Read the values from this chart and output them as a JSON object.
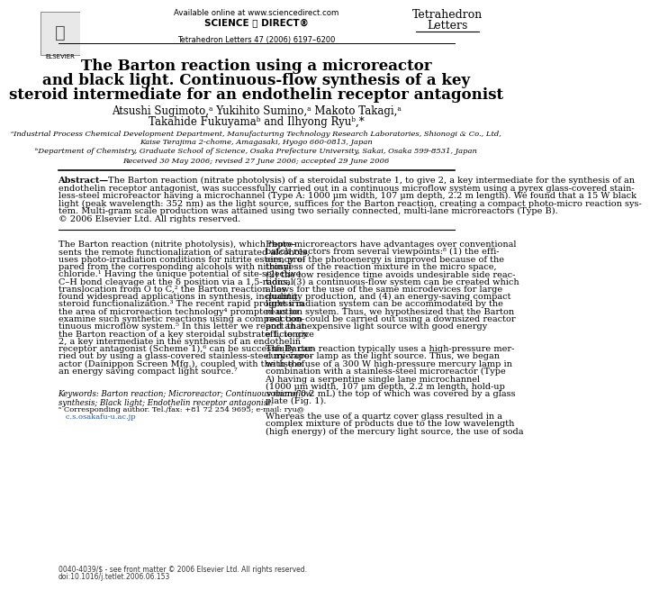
{
  "page_bg": "#ffffff",
  "header_online": "Available online at www.sciencedirect.com",
  "header_sd": "SCIENCE ⓐ DIRECT®",
  "header_journal_issue": "Tetrahedron Letters 47 (2006) 6197–6200",
  "header_journal_name": "Tetrahedron\nLetters",
  "title_line1": "The Barton reaction using a microreactor",
  "title_line2": "and black light. Continuous-flow synthesis of a key",
  "title_line3": "steroid intermediate for an endothelin receptor antagonist",
  "author_line1": "Atsushi Sugimoto,ᵃ Yukihito Sumino,ᵃ Makoto Takagi,ᵃ",
  "author_line2": "Takahide Fukuyamaᵇ and Ilhyong Ryuᵇ,*",
  "affil_a": "ᵃIndustrial Process Chemical Development Department, Manufacturing Technology Research Laboratories, Shionogi & Co., Ltd,",
  "affil_a2": "Kaise Terajima 2-chome, Amagasaki, Hyogo 660-0813, Japan",
  "affil_b": "ᵇDepartment of Chemistry, Graduate School of Science, Osaka Prefecture University, Sakai, Osaka 599-8531, Japan",
  "received": "Received 30 May 2006; revised 27 June 2006; accepted 29 June 2006",
  "abstract_bold": "Abstract—",
  "abstract_body": "The Barton reaction (nitrate photolysis) of a steroidal substrate 1, to give 2, a key intermediate for the synthesis of an endothelin receptor antagonist, was successfully carried out in a continuous microflow system using a pyrex glass-covered stainless-steel microreactor having a microchannel (Type A: 1000 μm width, 107 μm depth, 2.2 m length). We found that a 15 W black light (peak wavelength: 352 nm) as the light source, suffices for the Barton reaction, creating a compact photo-micro reaction system. Multi-gram scale production was attained using two serially connected, multi-lane microreactors (Type B).\n© 2006 Elsevier Ltd. All rights reserved.",
  "col1": [
    "The Barton reaction (nitrite photolysis), which repre-",
    "sents the remote functionalization of saturated alcohols,",
    "uses photo-irradiation conditions for nitrite esters, pre-",
    "pared from the corresponding alcohols with nitrosyl",
    "chloride.¹ Having the unique potential of site-selective",
    "C–H bond cleavage at the δ position via a 1,5-radical",
    "translocation from O to C,² the Barton reaction has",
    "found widespread applications in synthesis, including",
    "steroid functionalization.³ The recent rapid progress in",
    "the area of microreaction technology⁴ prompted us to",
    "examine such synthetic reactions using a compact con-",
    "tinuous microflow system.⁵ In this letter we report that",
    "the Barton reaction of a key steroidal substrate 1, to give",
    "2, a key intermediate in the synthesis of an endothelin",
    "receptor antagonist (Scheme 1),⁶ can be successfully car-",
    "ried out by using a glass-covered stainless-steel microre-",
    "actor (Dainippon Screen Mfg.), coupled with the use of",
    "an energy saving compact light source.⁷"
  ],
  "col2": [
    "Photo-microreactors have advantages over conventional",
    "batch reactors from several viewpoints:⁸ (1) the effi-",
    "ciency of the photoenergy is improved because of the",
    "thinness of the reaction mixture in the micro space,",
    "(2) the low residence time avoids undesirable side reac-",
    "tions, (3) a continuous-flow system can be created which",
    "allows for the use of the same microdevices for large",
    "quantity production, and (4) an energy-saving compact",
    "light irradiation system can be accommodated by the",
    "reaction system. Thus, we hypothesized that the Barton",
    "reaction could be carried out using a downsized reactor",
    "and an inexpensive light source with good energy",
    "efficiency.",
    "",
    "The Barton reaction typically uses a high-pressure mer-",
    "cury-vapor lamp as the light source. Thus, we began",
    "with the use of a 300 W high-pressure mercury lamp in",
    "combination with a stainless-steel microreactor (Type",
    "A) having a serpentine single lane microchannel",
    "(1000 μm width, 107 μm depth, 2.2 m length, hold-up",
    "volume 0.2 mL) the top of which was covered by a glass",
    "plate (Fig. 1).",
    "",
    "Whereas the use of a quartz cover glass resulted in a",
    "complex mixture of products due to the low wavelength",
    "(high energy) of the mercury light source, the use of soda"
  ],
  "keywords": "Keywords: Barton reaction; Microreactor; Continuous microflow\nsynthesis; Black light; Endothelin receptor antagonist.",
  "corr_author": "ᵃ Corresponding author. Tel./fax: +81 72 254 9695; e-mail: ryu@",
  "corr_author2": "   c.s.osakafu-u.ac.jp",
  "footer": "0040-4039/$ - see front matter © 2006 Elsevier Ltd. All rights reserved.",
  "footer2": "doi:10.1016/j.tetlet.2006.06.153"
}
